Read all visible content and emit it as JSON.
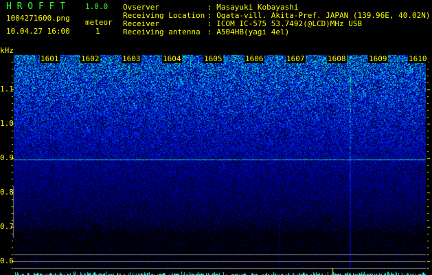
{
  "header": {
    "app_name": "H R O F F T",
    "version": "1.0.0",
    "filename": "1004271600.png",
    "datetime": "10.04.27 16:00",
    "meteor_label": "meteor",
    "meteor_count": "1",
    "info": [
      {
        "label": "Ovserver",
        "value": ": Masayuki Kobayashi"
      },
      {
        "label": "Receiving Location",
        "value": ": Ogata-vill. Akita-Pref. JAPAN (139.96E, 40.02N)"
      },
      {
        "label": "Receiver",
        "value": ": ICOM IC-575 53.7492(@LCD)MHz USB"
      },
      {
        "label": "Receiving antenna",
        "value": ": A504HB(yagi 4el)"
      }
    ]
  },
  "spectrogram": {
    "y_unit": "kHz",
    "y_ticks": [
      "1.1",
      "1.0",
      "0.9",
      "0.8",
      "0.7",
      "0.6"
    ],
    "x_ticks": [
      "1601",
      "1602",
      "1603",
      "1604",
      "1605",
      "1606",
      "1607",
      "1608",
      "1609",
      "1610"
    ],
    "colors": {
      "label": "#ffff00",
      "title": "#33ff33",
      "noise_high": "#1e3cff",
      "histogram": "#00ffff",
      "reference_line": "#808080"
    }
  }
}
